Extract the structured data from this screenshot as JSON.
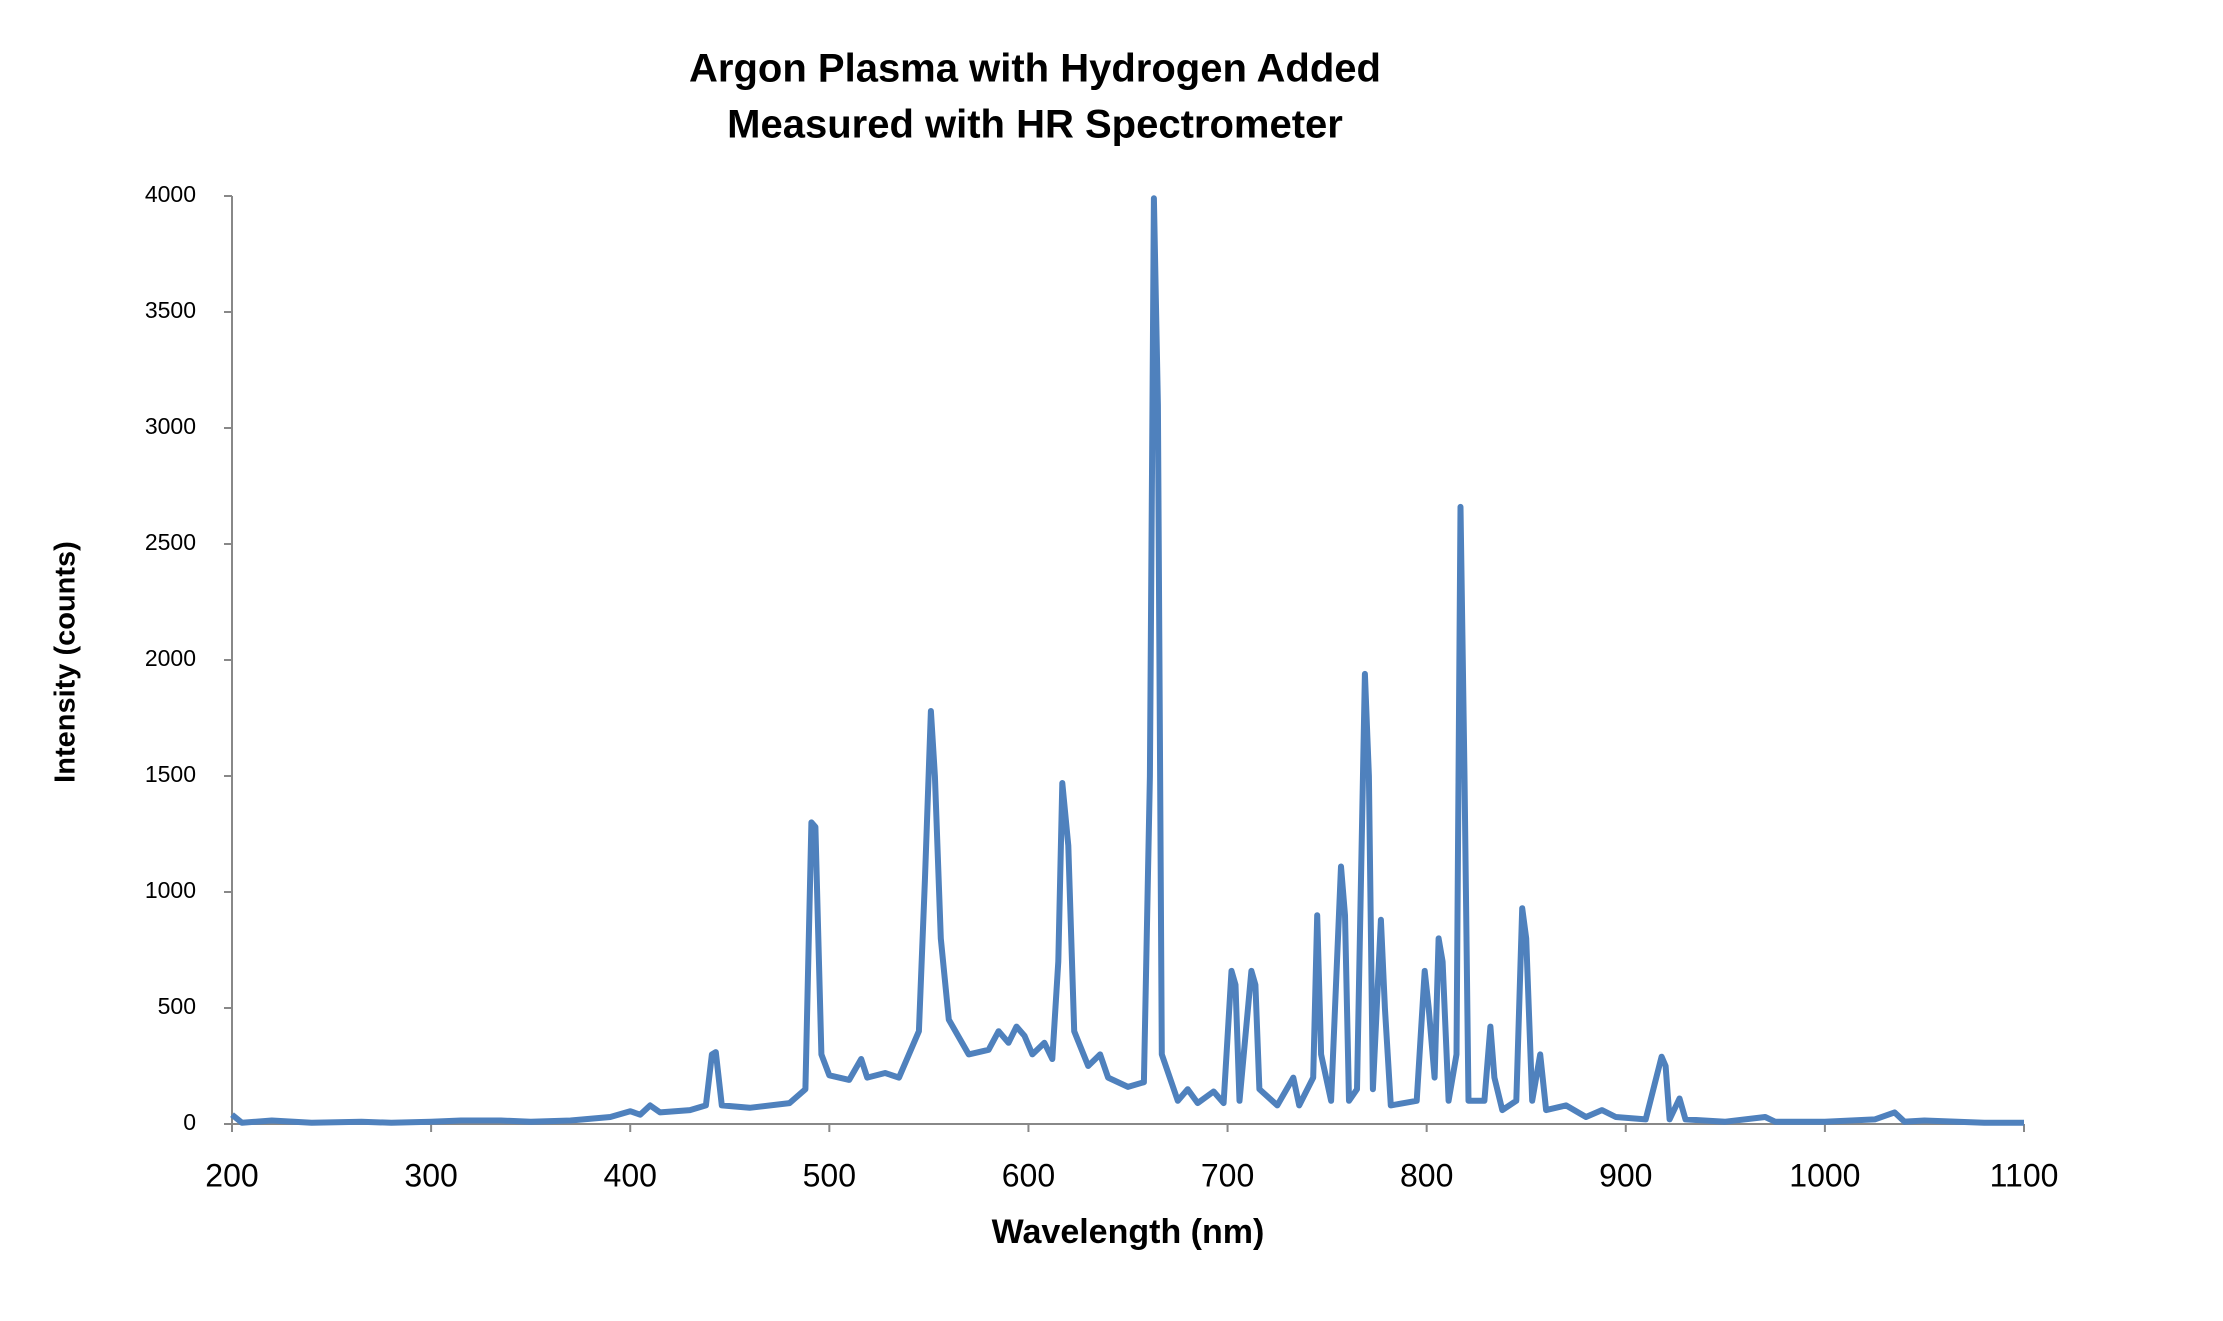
{
  "chart_data": {
    "type": "line",
    "title": [
      "Argon Plasma with Hydrogen Added",
      "Measured with HR Spectrometer"
    ],
    "x_label": "Wavelength (nm)",
    "y_label": "Intensity (counts)",
    "color": "#4f81bd",
    "x": [
      200,
      205,
      220,
      240,
      265,
      280,
      300,
      315,
      335,
      350,
      370,
      390,
      400,
      405,
      410,
      415,
      430,
      438,
      441,
      443,
      446,
      460,
      480,
      488,
      491,
      493,
      496,
      500,
      510,
      516,
      519,
      528,
      535,
      545,
      548,
      551,
      553,
      556,
      560,
      570,
      580,
      585,
      590,
      594,
      598,
      602,
      608,
      612,
      615,
      617,
      620,
      623,
      630,
      636,
      640,
      650,
      658,
      661,
      663,
      665,
      667,
      675,
      680,
      685,
      693,
      698,
      702,
      704,
      706,
      712,
      714,
      716,
      725,
      733,
      736,
      743,
      745,
      747,
      752,
      757,
      759,
      761,
      765,
      769,
      771,
      773,
      777,
      779,
      782,
      795,
      799,
      801,
      804,
      806,
      808,
      811,
      815,
      817,
      819,
      821,
      829,
      832,
      834,
      838,
      845,
      848,
      850,
      853,
      857,
      860,
      870,
      880,
      888,
      895,
      910,
      918,
      920,
      922,
      927,
      930,
      950,
      970,
      975,
      1000,
      1025,
      1035,
      1040,
      1050,
      1080,
      1100
    ],
    "values": [
      40,
      5,
      15,
      5,
      10,
      5,
      10,
      15,
      15,
      10,
      15,
      30,
      55,
      40,
      80,
      50,
      60,
      80,
      300,
      310,
      80,
      70,
      90,
      150,
      1300,
      1280,
      300,
      210,
      190,
      280,
      200,
      220,
      200,
      400,
      1050,
      1780,
      1500,
      800,
      450,
      300,
      320,
      400,
      350,
      420,
      380,
      300,
      350,
      280,
      700,
      1470,
      1200,
      400,
      250,
      300,
      200,
      160,
      180,
      1500,
      3990,
      3100,
      300,
      100,
      150,
      90,
      140,
      90,
      660,
      600,
      100,
      660,
      600,
      150,
      80,
      200,
      80,
      200,
      900,
      300,
      100,
      1110,
      900,
      100,
      150,
      1940,
      1500,
      150,
      880,
      500,
      80,
      100,
      660,
      500,
      200,
      800,
      700,
      100,
      300,
      2660,
      1500,
      100,
      100,
      420,
      200,
      60,
      100,
      930,
      800,
      100,
      300,
      60,
      80,
      30,
      60,
      30,
      20,
      290,
      250,
      20,
      110,
      20,
      10,
      30,
      10,
      10,
      20,
      50,
      10,
      15,
      5,
      5
    ],
    "xlim": [
      200,
      1100
    ],
    "xticks": [
      200,
      300,
      400,
      500,
      600,
      700,
      800,
      900,
      1000,
      1100
    ],
    "ylim": [
      0,
      4000
    ],
    "yticks": [
      0,
      500,
      1000,
      1500,
      2000,
      2500,
      3000,
      3500,
      4000
    ]
  }
}
